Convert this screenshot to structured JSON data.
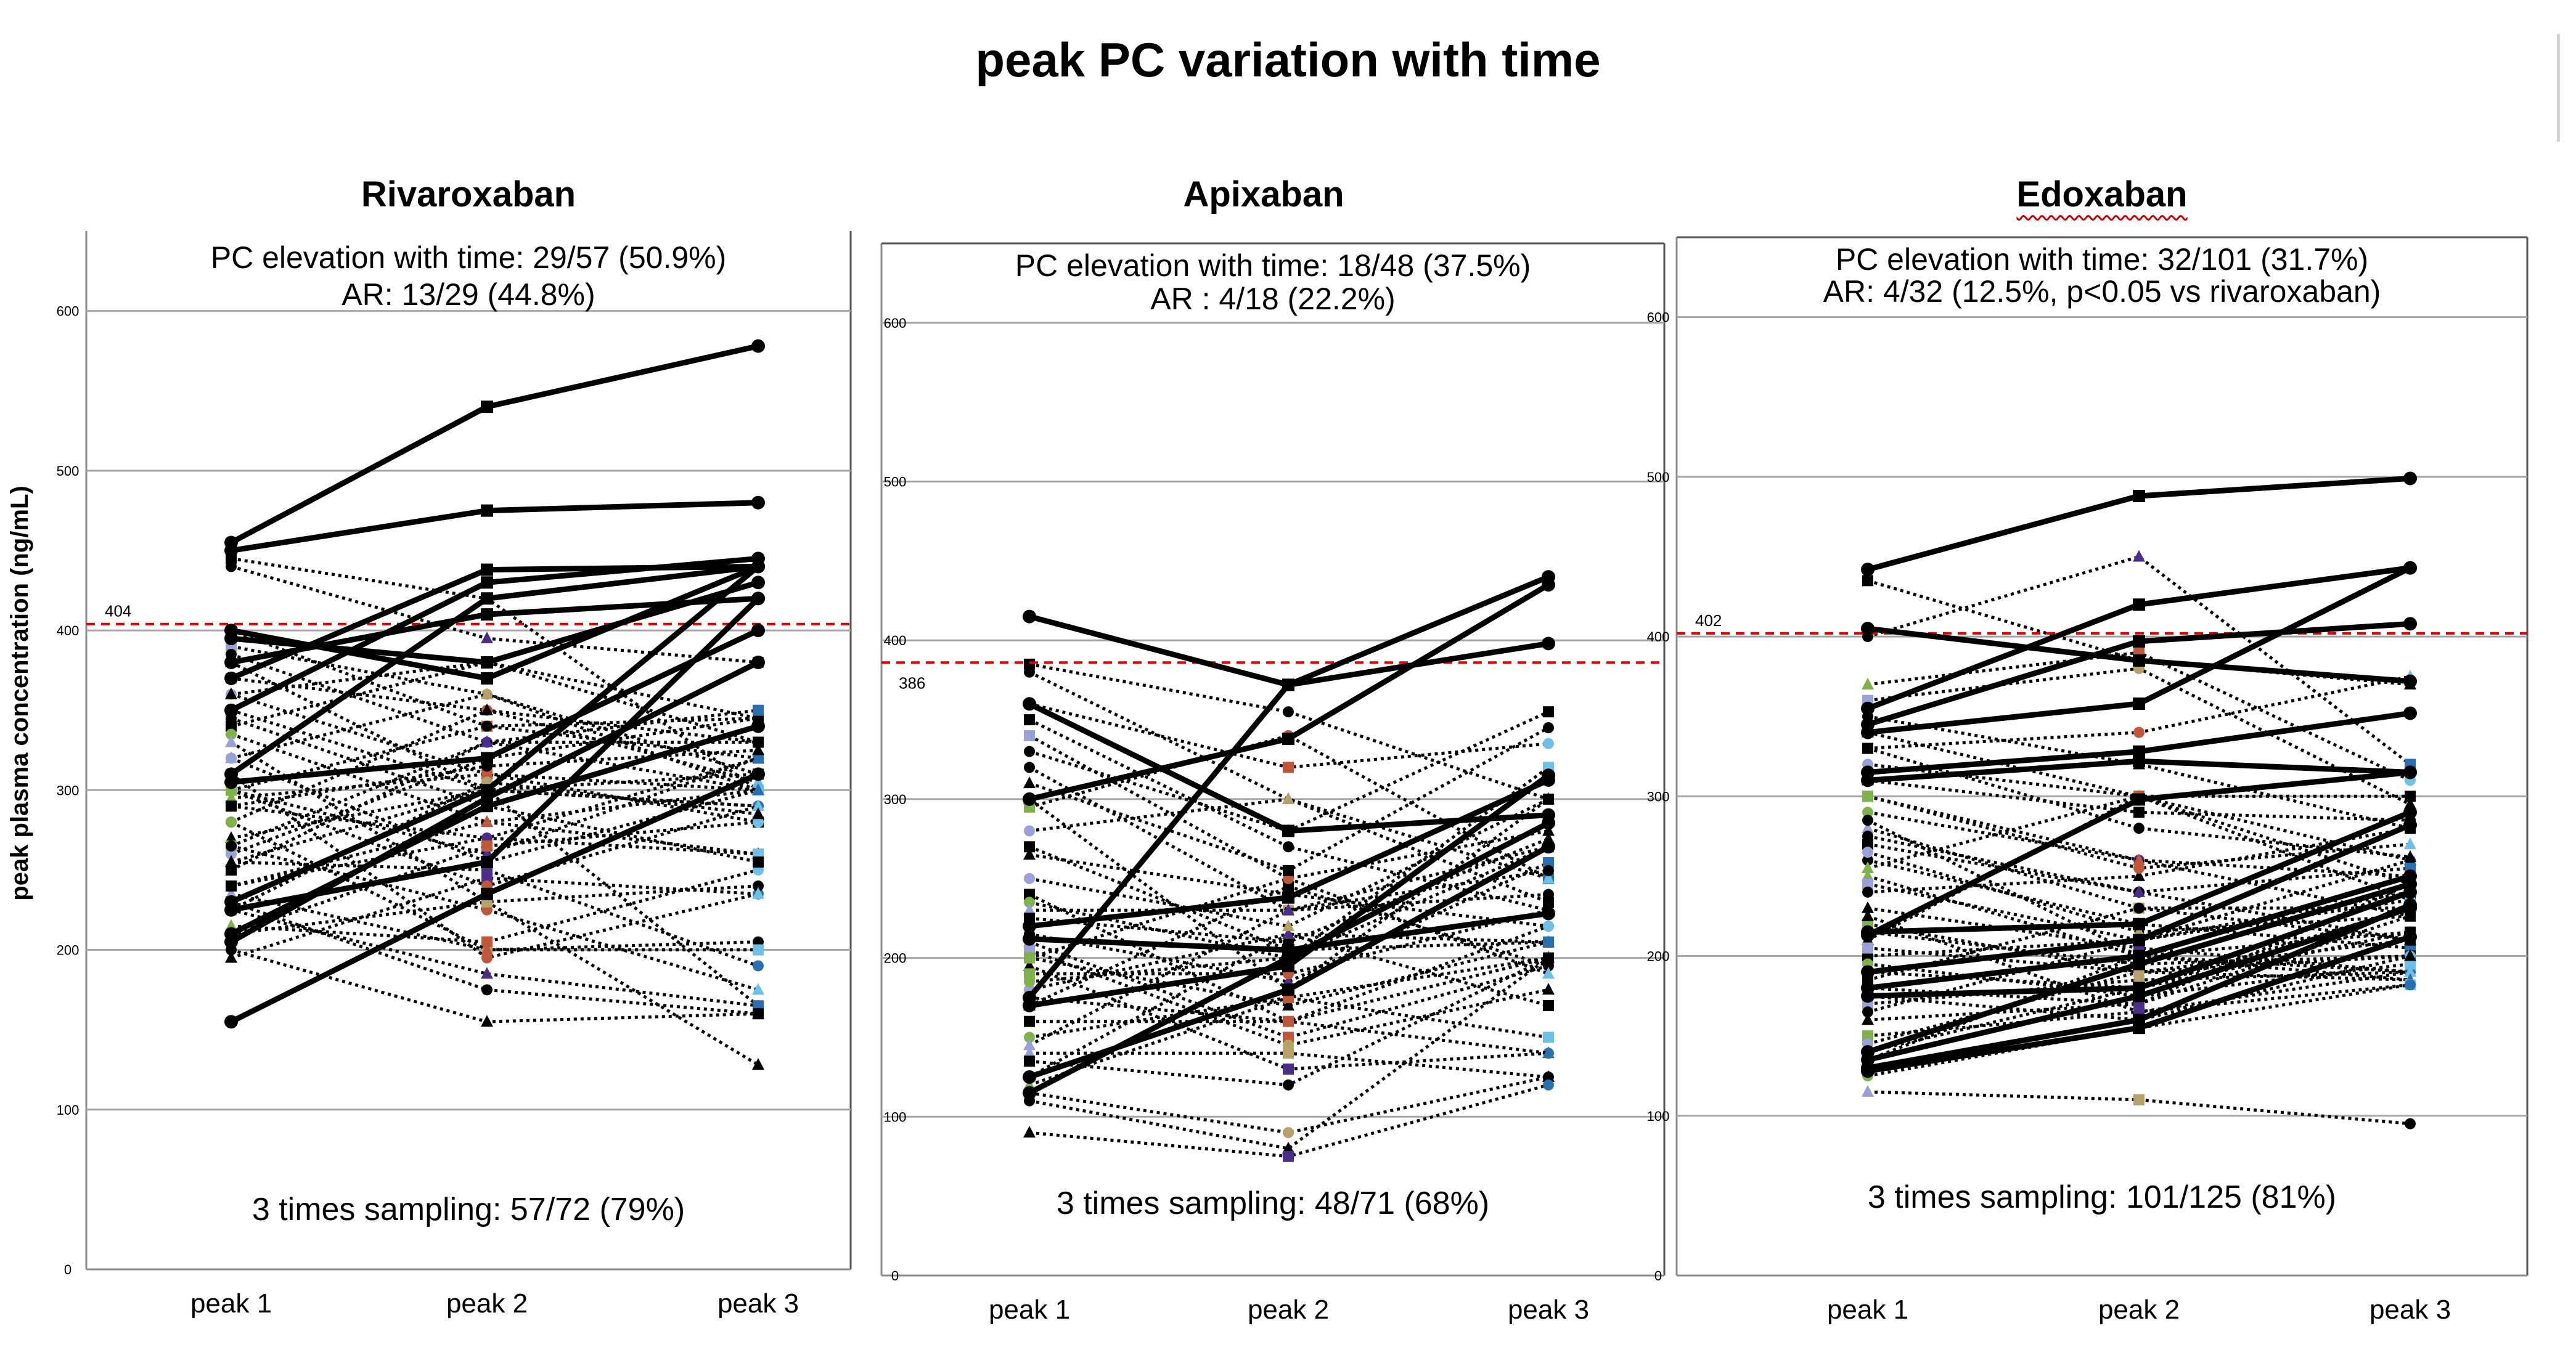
{
  "title": "peak PC variation with time",
  "ylabel": "peak plasma concentration (ng/mL)",
  "chart_data": [
    {
      "type": "line",
      "title": "Rivaroxaban",
      "categories": [
        "peak 1",
        "peak 2",
        "peak 3"
      ],
      "ylim": [
        0,
        650
      ],
      "yticks": [
        0,
        100,
        200,
        300,
        400,
        500,
        600
      ],
      "reference_line": {
        "value": 404,
        "label": "404",
        "color": "#e00000",
        "style": "dashed"
      },
      "annotation_line1": "PC elevation with time: 29/57 (50.9%)",
      "annotation_line2": "AR:  13/29 (44.8%)",
      "sampling_note": "3 times sampling:  57/72 (79%)",
      "solid_series": [
        [
          455,
          540,
          578
        ],
        [
          450,
          475,
          480
        ],
        [
          400,
          370,
          440
        ],
        [
          395,
          380,
          430
        ],
        [
          380,
          410,
          420
        ],
        [
          370,
          438,
          440
        ],
        [
          350,
          430,
          445
        ],
        [
          310,
          420,
          440
        ],
        [
          305,
          320,
          400
        ],
        [
          230,
          300,
          440
        ],
        [
          225,
          255,
          420
        ],
        [
          210,
          290,
          340
        ],
        [
          205,
          295,
          380
        ],
        [
          155,
          235,
          310
        ]
      ],
      "dotted_series": [
        [
          445,
          420,
          300
        ],
        [
          440,
          395,
          380
        ],
        [
          400,
          340,
          320
        ],
        [
          390,
          360,
          300
        ],
        [
          385,
          330,
          330
        ],
        [
          380,
          300,
          310
        ],
        [
          370,
          350,
          305
        ],
        [
          360,
          310,
          280
        ],
        [
          350,
          300,
          290
        ],
        [
          340,
          380,
          345
        ],
        [
          335,
          280,
          300
        ],
        [
          320,
          255,
          300
        ],
        [
          300,
          340,
          345
        ],
        [
          300,
          260,
          320
        ],
        [
          295,
          310,
          300
        ],
        [
          290,
          270,
          260
        ],
        [
          280,
          350,
          330
        ],
        [
          270,
          300,
          290
        ],
        [
          265,
          225,
          175
        ],
        [
          260,
          320,
          345
        ],
        [
          255,
          300,
          165
        ],
        [
          250,
          330,
          300
        ],
        [
          240,
          280,
          260
        ],
        [
          235,
          200,
          205
        ],
        [
          230,
          175,
          160
        ],
        [
          225,
          185,
          165
        ],
        [
          215,
          205,
          250
        ],
        [
          210,
          230,
          128
        ],
        [
          200,
          155,
          160
        ],
        [
          195,
          245,
          235
        ],
        [
          300,
          240,
          290
        ],
        [
          320,
          360,
          310
        ],
        [
          360,
          380,
          330
        ],
        [
          240,
          270,
          320
        ],
        [
          280,
          200,
          200
        ],
        [
          330,
          230,
          240
        ],
        [
          290,
          315,
          325
        ],
        [
          265,
          330,
          350
        ],
        [
          210,
          265,
          280
        ],
        [
          225,
          305,
          285
        ],
        [
          345,
          290,
          255
        ],
        [
          255,
          250,
          190
        ],
        [
          310,
          195,
          235
        ]
      ]
    },
    {
      "type": "line",
      "title": "Apixaban",
      "categories": [
        "peak 1",
        "peak 2",
        "peak 3"
      ],
      "ylim": [
        0,
        650
      ],
      "yticks": [
        0,
        100,
        200,
        300,
        400,
        500,
        600
      ],
      "reference_line": {
        "value": 386,
        "label": "386",
        "color": "#e00000",
        "style": "dashed"
      },
      "annotation_line1": "PC elevation with time: 18/48 (37.5%)",
      "annotation_line2": "AR :  4/18 (22.2%)",
      "sampling_note": "3 times sampling:  48/71 (68%)",
      "solid_series": [
        [
          415,
          372,
          398
        ],
        [
          360,
          280,
          290
        ],
        [
          300,
          338,
          435
        ],
        [
          220,
          238,
          312
        ],
        [
          212,
          205,
          228
        ],
        [
          175,
          372,
          440
        ],
        [
          170,
          195,
          315
        ],
        [
          125,
          180,
          270
        ],
        [
          115,
          200,
          285
        ]
      ],
      "dotted_series": [
        [
          385,
          355,
          300
        ],
        [
          380,
          300,
          250
        ],
        [
          360,
          320,
          335
        ],
        [
          340,
          250,
          280
        ],
        [
          330,
          280,
          355
        ],
        [
          300,
          180,
          300
        ],
        [
          295,
          340,
          250
        ],
        [
          280,
          300,
          235
        ],
        [
          265,
          240,
          220
        ],
        [
          240,
          160,
          200
        ],
        [
          235,
          200,
          320
        ],
        [
          230,
          230,
          240
        ],
        [
          225,
          210,
          275
        ],
        [
          215,
          185,
          260
        ],
        [
          210,
          150,
          195
        ],
        [
          205,
          145,
          180
        ],
        [
          200,
          170,
          210
        ],
        [
          195,
          130,
          140
        ],
        [
          190,
          190,
          230
        ],
        [
          180,
          215,
          170
        ],
        [
          170,
          245,
          195
        ],
        [
          160,
          160,
          140
        ],
        [
          150,
          175,
          150
        ],
        [
          140,
          140,
          125
        ],
        [
          135,
          120,
          200
        ],
        [
          125,
          215,
          210
        ],
        [
          120,
          175,
          200
        ],
        [
          115,
          90,
          125
        ],
        [
          110,
          80,
          200
        ],
        [
          90,
          75,
          120
        ],
        [
          200,
          250,
          190
        ],
        [
          250,
          220,
          300
        ],
        [
          310,
          255,
          345
        ],
        [
          270,
          205,
          210
        ],
        [
          185,
          200,
          270
        ],
        [
          145,
          230,
          255
        ],
        [
          350,
          270,
          230
        ],
        [
          320,
          230,
          270
        ],
        [
          175,
          160,
          220
        ]
      ]
    },
    {
      "type": "line",
      "title": "Edoxaban",
      "categories": [
        "peak 1",
        "peak 2",
        "peak 3"
      ],
      "ylim": [
        0,
        650
      ],
      "yticks": [
        0,
        100,
        200,
        300,
        400,
        500,
        600
      ],
      "reference_line": {
        "value": 402,
        "label": "402",
        "color": "#e00000",
        "style": "dashed"
      },
      "annotation_line1": "PC elevation with time: 32/101 (31.7%)",
      "annotation_line2": "AR: 4/32 (12.5%, p<0.05 vs rivaroxaban)",
      "sampling_note": "3 times sampling:  101/125 (81%)",
      "solid_series": [
        [
          442,
          488,
          499
        ],
        [
          405,
          385,
          372
        ],
        [
          355,
          420,
          443
        ],
        [
          340,
          358,
          443
        ],
        [
          345,
          397,
          408
        ],
        [
          315,
          328,
          352
        ],
        [
          310,
          322,
          315
        ],
        [
          213,
          298,
          315
        ],
        [
          215,
          220,
          290
        ],
        [
          190,
          210,
          282
        ],
        [
          180,
          200,
          250
        ],
        [
          175,
          180,
          240
        ],
        [
          140,
          195,
          245
        ],
        [
          135,
          175,
          230
        ],
        [
          130,
          160,
          232
        ],
        [
          128,
          155,
          212
        ]
      ],
      "dotted_series": [
        [
          435,
          385,
          370
        ],
        [
          400,
          450,
          320
        ],
        [
          370,
          390,
          310
        ],
        [
          360,
          380,
          295
        ],
        [
          350,
          320,
          280
        ],
        [
          340,
          300,
          260
        ],
        [
          330,
          340,
          375
        ],
        [
          320,
          300,
          300
        ],
        [
          310,
          290,
          285
        ],
        [
          300,
          260,
          250
        ],
        [
          290,
          260,
          225
        ],
        [
          280,
          230,
          230
        ],
        [
          270,
          240,
          210
        ],
        [
          260,
          220,
          205
        ],
        [
          250,
          200,
          190
        ],
        [
          245,
          210,
          260
        ],
        [
          240,
          250,
          280
        ],
        [
          230,
          205,
          190
        ],
        [
          220,
          190,
          185
        ],
        [
          215,
          195,
          200
        ],
        [
          210,
          300,
          245
        ],
        [
          200,
          210,
          240
        ],
        [
          195,
          175,
          195
        ],
        [
          190,
          180,
          215
        ],
        [
          185,
          230,
          210
        ],
        [
          180,
          170,
          245
        ],
        [
          175,
          160,
          200
        ],
        [
          170,
          185,
          190
        ],
        [
          165,
          210,
          235
        ],
        [
          160,
          170,
          225
        ],
        [
          150,
          165,
          190
        ],
        [
          145,
          190,
          210
        ],
        [
          140,
          180,
          230
        ],
        [
          135,
          200,
          185
        ],
        [
          125,
          155,
          182
        ],
        [
          115,
          110,
          95
        ],
        [
          330,
          280,
          262
        ],
        [
          275,
          240,
          255
        ],
        [
          255,
          300,
          235
        ],
        [
          205,
          190,
          200
        ],
        [
          285,
          200,
          215
        ],
        [
          225,
          165,
          182
        ],
        [
          300,
          255,
          270
        ],
        [
          265,
          215,
          225
        ]
      ]
    }
  ]
}
